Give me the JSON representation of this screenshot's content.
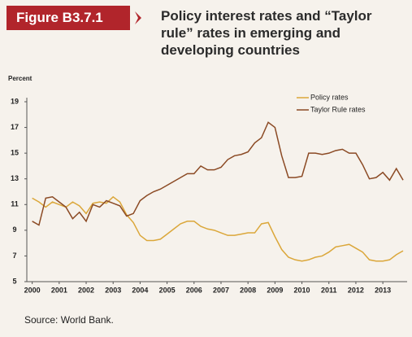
{
  "header": {
    "figure": "Figure B3.7.1"
  },
  "footer": {
    "source": "Source: World Bank."
  },
  "chart_data": {
    "type": "line",
    "title": "Policy interest rates and “Taylor rule” rates in emerging and developing countries",
    "y_label": "Percent",
    "x": [
      2000,
      2000.25,
      2000.5,
      2000.75,
      2001,
      2001.25,
      2001.5,
      2001.75,
      2002,
      2002.25,
      2002.5,
      2002.75,
      2003,
      2003.25,
      2003.5,
      2003.75,
      2004,
      2004.25,
      2004.5,
      2004.75,
      2005,
      2005.25,
      2005.5,
      2005.75,
      2006,
      2006.25,
      2006.5,
      2006.75,
      2007,
      2007.25,
      2007.5,
      2007.75,
      2008,
      2008.25,
      2008.5,
      2008.75,
      2009,
      2009.25,
      2009.5,
      2009.75,
      2010,
      2010.25,
      2010.5,
      2010.75,
      2011,
      2011.25,
      2011.5,
      2011.75,
      2012,
      2012.25,
      2012.5,
      2012.75,
      2013,
      2013.25,
      2013.5,
      2013.75
    ],
    "series": [
      {
        "name": "Policy rates",
        "color": "#dba73a",
        "values": [
          11.5,
          11.2,
          10.8,
          11.2,
          11.0,
          10.8,
          11.2,
          10.9,
          10.3,
          11.1,
          11.2,
          11.1,
          11.6,
          11.2,
          10.2,
          9.6,
          8.6,
          8.2,
          8.2,
          8.3,
          8.7,
          9.1,
          9.5,
          9.7,
          9.7,
          9.3,
          9.1,
          9.0,
          8.8,
          8.6,
          8.6,
          8.7,
          8.8,
          8.8,
          9.5,
          9.6,
          8.5,
          7.5,
          6.9,
          6.7,
          6.6,
          6.7,
          6.9,
          7.0,
          7.3,
          7.7,
          7.8,
          7.9,
          7.6,
          7.3,
          6.7,
          6.6,
          6.6,
          6.7,
          7.1,
          7.4
        ]
      },
      {
        "name": "Taylor Rule rates",
        "color": "#8b4a24",
        "values": [
          9.7,
          9.4,
          11.5,
          11.6,
          11.2,
          10.8,
          9.9,
          10.4,
          9.7,
          11.0,
          10.8,
          11.3,
          11.1,
          10.9,
          10.1,
          10.3,
          11.3,
          11.7,
          12.0,
          12.2,
          12.5,
          12.8,
          13.1,
          13.4,
          13.4,
          14.0,
          13.7,
          13.7,
          13.9,
          14.5,
          14.8,
          14.9,
          15.1,
          15.8,
          16.2,
          17.4,
          17.0,
          14.8,
          13.1,
          13.1,
          13.2,
          15.0,
          15.0,
          14.9,
          15.0,
          15.2,
          15.3,
          15.0,
          15.0,
          14.1,
          13.0,
          13.1,
          13.5,
          12.9,
          13.8,
          12.9
        ]
      }
    ],
    "xlim": [
      1999.8,
      2013.9
    ],
    "xticks": [
      2000,
      2001,
      2002,
      2003,
      2004,
      2005,
      2006,
      2007,
      2008,
      2009,
      2010,
      2011,
      2012,
      2013
    ],
    "ylim": [
      5,
      19
    ],
    "yticks": [
      5,
      7,
      9,
      11,
      13,
      15,
      17,
      19
    ],
    "grid": false,
    "legend": "top-right"
  }
}
